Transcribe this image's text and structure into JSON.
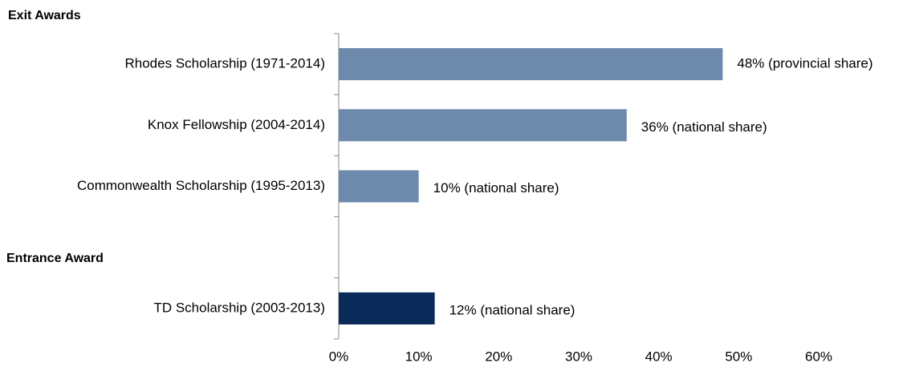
{
  "chart_data": {
    "type": "bar",
    "orientation": "horizontal",
    "annotations": [
      "Exit Awards",
      "Entrance Award"
    ],
    "categories": [
      "Rhodes Scholarship (1971-2014)",
      "Knox Fellowship (2004-2014)",
      "Commonwealth Scholarship (1995-2013)",
      null,
      "TD Scholarship (2003-2013)"
    ],
    "values": [
      48,
      36,
      10,
      null,
      12
    ],
    "value_labels": [
      "48% (provincial share)",
      "36% (national share)",
      "10%  (national share)",
      null,
      "12%  (national share)"
    ],
    "colors": [
      "#6d89ab",
      "#6d89ab",
      "#6d89ab",
      null,
      "#0a2a5a"
    ],
    "xlim": [
      0,
      60
    ],
    "xticks": [
      {
        "value": 0,
        "label": "0%"
      },
      {
        "value": 10,
        "label": "10%"
      },
      {
        "value": 20,
        "label": "20%"
      },
      {
        "value": 30,
        "label": "30%"
      },
      {
        "value": 40,
        "label": "40%"
      },
      {
        "value": 50,
        "label": "50%"
      },
      {
        "value": 60,
        "label": "60%"
      }
    ]
  }
}
